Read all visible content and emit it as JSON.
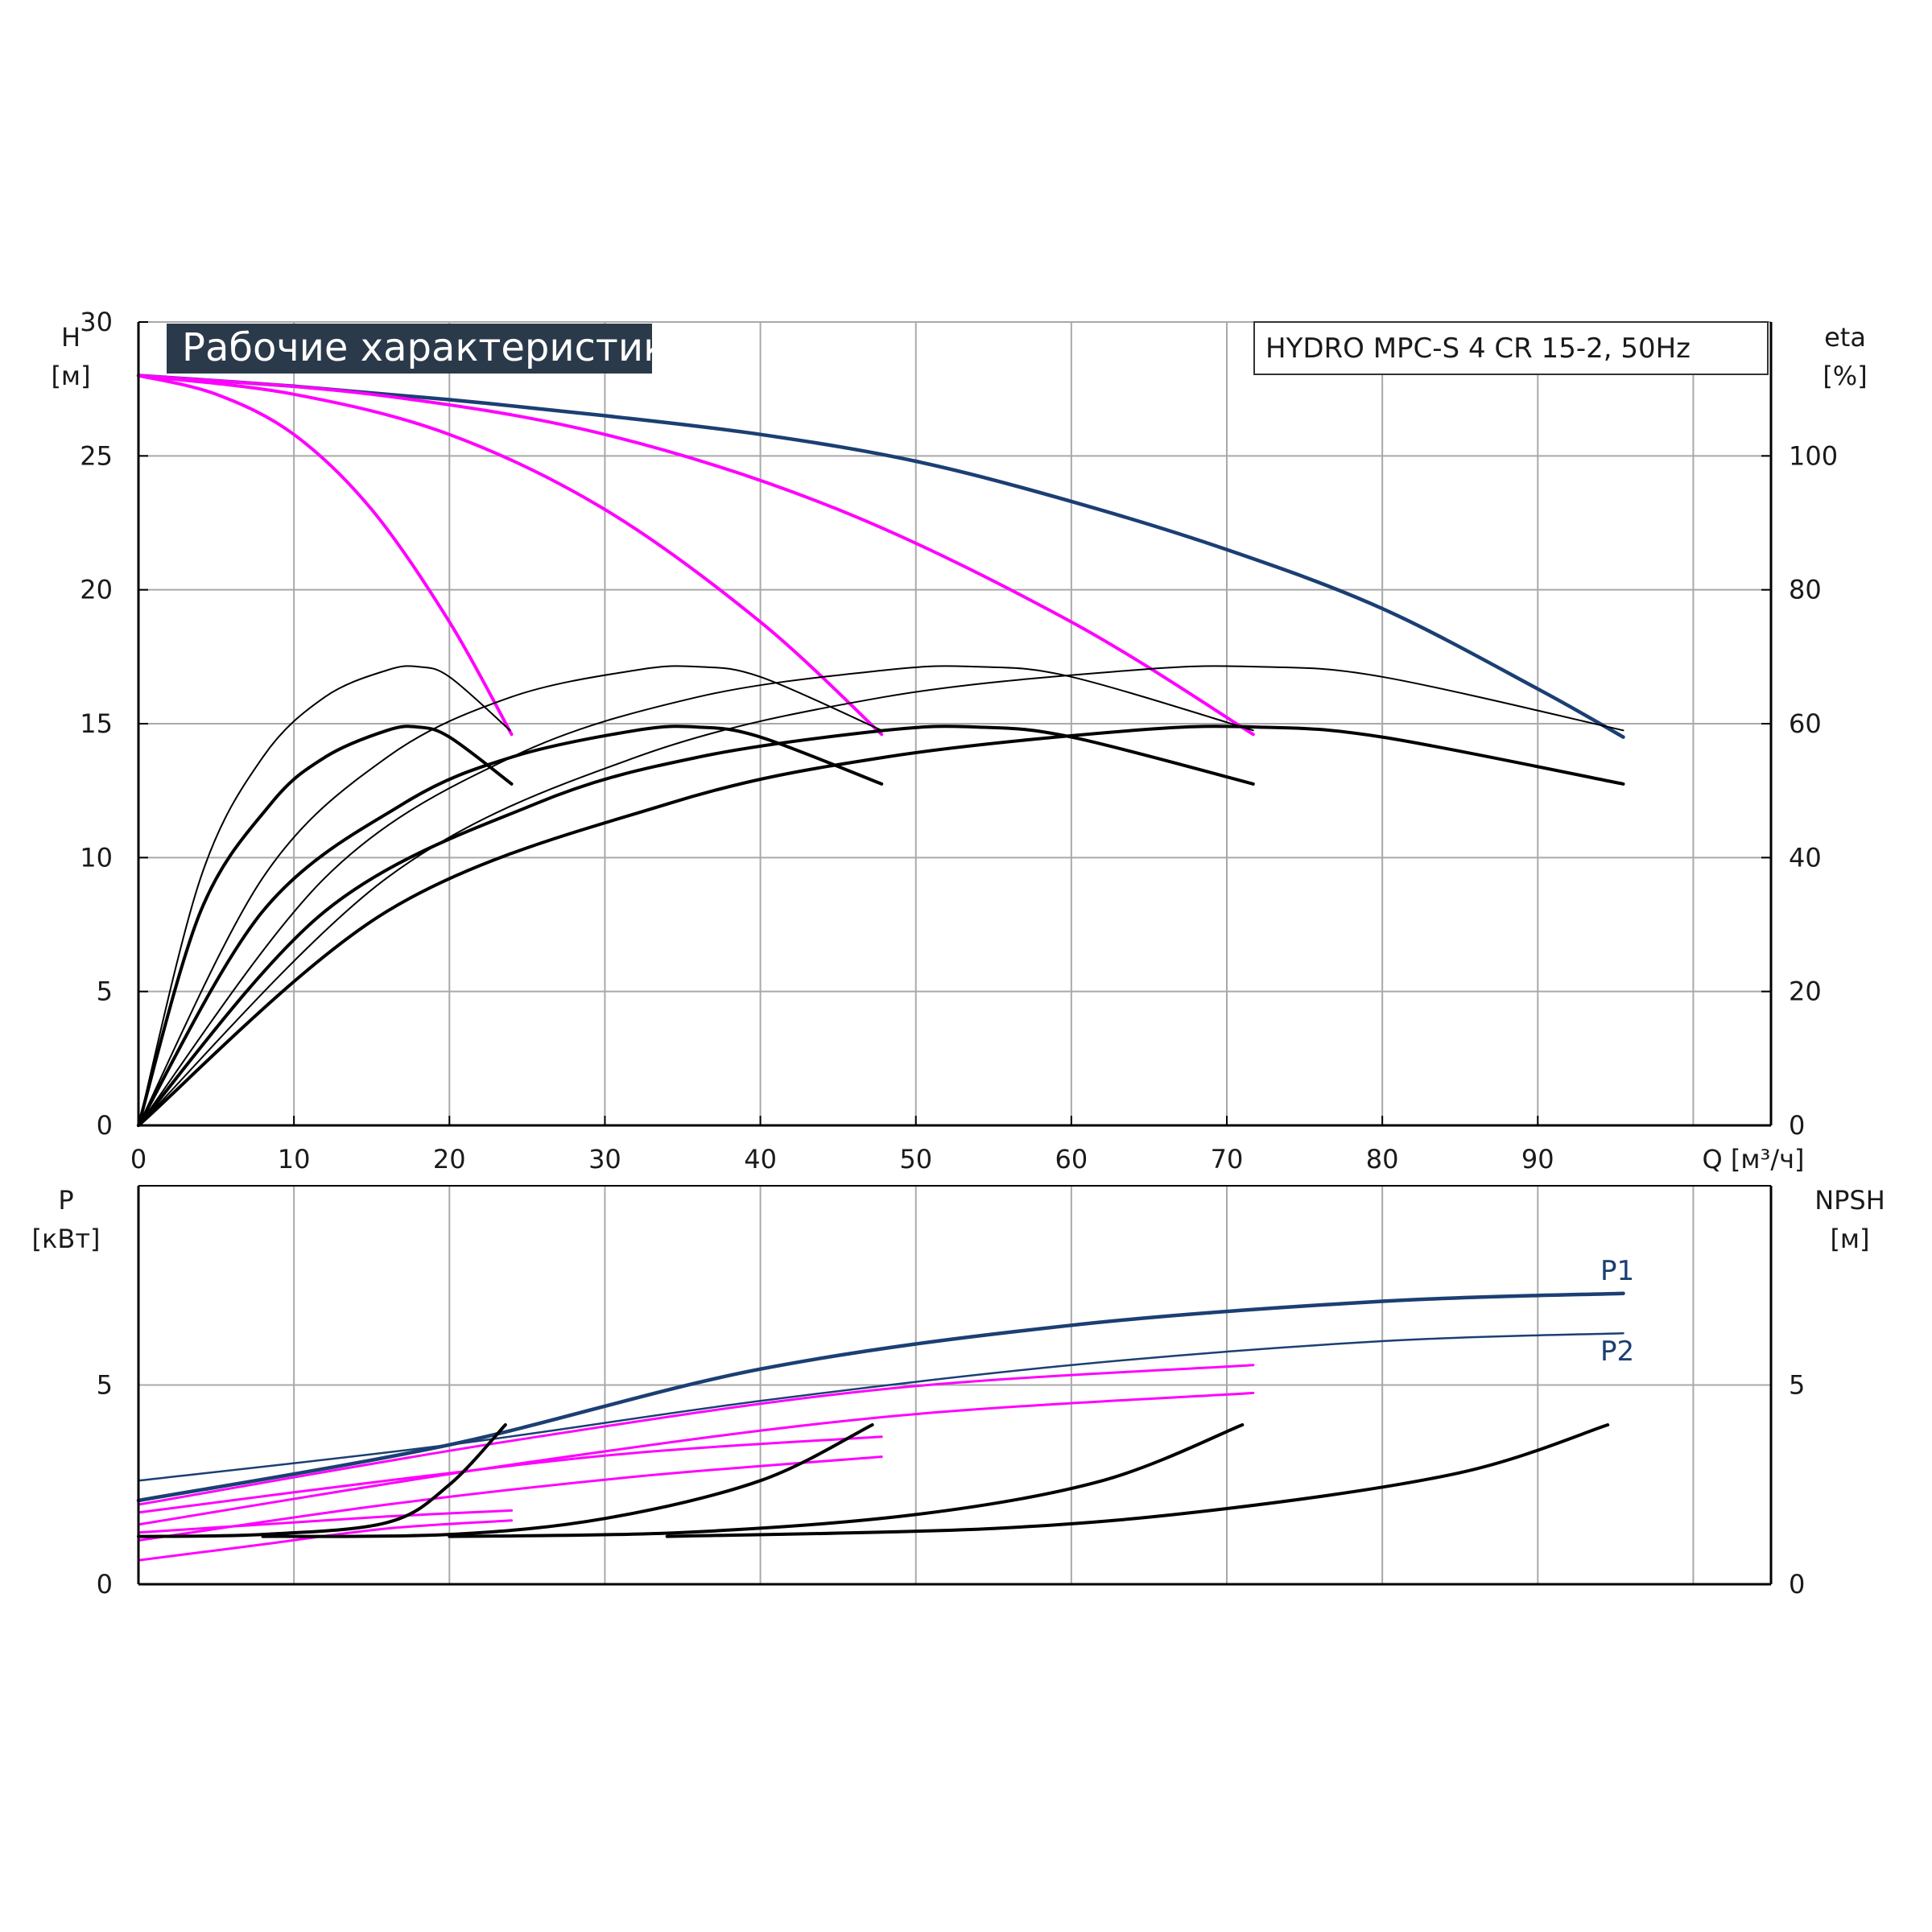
{
  "chart_data": [
    {
      "type": "line",
      "title": "Рабочие характеристики",
      "subtitle": "HYDRO MPC-S 4 CR 15-2, 50Hz",
      "xlabel": "Q [м³/ч]",
      "ylabel_name": "H",
      "ylabel_unit": "[м]",
      "y2label_name": "eta",
      "y2label_unit": "[%]",
      "xlim": [
        0,
        105
      ],
      "ylim": [
        0,
        30
      ],
      "y2lim": [
        0,
        120
      ],
      "x_ticks": [
        "0",
        "10",
        "20",
        "30",
        "40",
        "50",
        "60",
        "70",
        "80",
        "90"
      ],
      "y_ticks": [
        "0",
        "5",
        "10",
        "15",
        "20",
        "25",
        "30"
      ],
      "y2_ticks": [
        "0",
        "20",
        "40",
        "60",
        "80",
        "100"
      ],
      "grid": true,
      "colors": {
        "total": "#1b3f73",
        "pump": "#ff00ff",
        "eta": "#000000",
        "grid": "#a9a9a9"
      },
      "series": [
        {
          "kind": "H",
          "role": "total",
          "x": [
            0,
            10,
            20,
            30,
            40,
            50,
            60,
            70,
            80,
            90,
            95.5
          ],
          "y": [
            28,
            27.6,
            27.1,
            26.5,
            25.8,
            24.8,
            23.3,
            21.5,
            19.3,
            16.3,
            14.5
          ]
        },
        {
          "kind": "H",
          "role": "pump",
          "x": [
            0,
            5,
            10,
            15,
            20,
            24
          ],
          "y": [
            28,
            27.3,
            25.8,
            23.0,
            18.8,
            14.6
          ]
        },
        {
          "kind": "H",
          "role": "pump",
          "x": [
            0,
            10,
            20,
            30,
            40,
            47.8
          ],
          "y": [
            28,
            27.3,
            25.8,
            23.0,
            18.8,
            14.6
          ]
        },
        {
          "kind": "H",
          "role": "pump",
          "x": [
            0,
            15,
            30,
            45,
            60,
            71.7
          ],
          "y": [
            28,
            27.3,
            25.8,
            23.0,
            18.8,
            14.6
          ]
        },
        {
          "kind": "eta",
          "role": "upper",
          "x": [
            0,
            4,
            8,
            12,
            16,
            18,
            20,
            23.9
          ],
          "y": [
            0,
            37,
            55,
            64,
            68,
            68.5,
            67,
            59
          ]
        },
        {
          "kind": "eta",
          "role": "upper",
          "x": [
            0,
            8,
            16,
            24,
            32,
            36,
            40,
            47.8
          ],
          "y": [
            0,
            37,
            55,
            64,
            68,
            68.5,
            67,
            59
          ]
        },
        {
          "kind": "eta",
          "role": "upper",
          "x": [
            0,
            12,
            24,
            36,
            48,
            54,
            60,
            71.7
          ],
          "y": [
            0,
            37,
            55,
            64,
            68,
            68.5,
            67,
            59
          ]
        },
        {
          "kind": "eta",
          "role": "upper",
          "x": [
            0,
            16,
            32,
            48,
            64,
            72,
            80,
            95.5
          ],
          "y": [
            0,
            37,
            55,
            64,
            68,
            68.5,
            67,
            59
          ]
        },
        {
          "kind": "eta",
          "role": "lower",
          "x": [
            0,
            4,
            8.5,
            12,
            16,
            18,
            20,
            24
          ],
          "y": [
            0,
            32,
            48,
            55,
            59,
            59.5,
            58,
            51
          ]
        },
        {
          "kind": "eta",
          "role": "lower",
          "x": [
            0,
            8,
            17,
            24,
            32,
            36,
            40,
            47.8
          ],
          "y": [
            0,
            32,
            48,
            55,
            59,
            59.5,
            58,
            51
          ]
        },
        {
          "kind": "eta",
          "role": "lower",
          "x": [
            0,
            12,
            25.5,
            36,
            48,
            54,
            60,
            71.7
          ],
          "y": [
            0,
            32,
            48,
            55,
            59,
            59.5,
            58,
            51
          ]
        },
        {
          "kind": "eta",
          "role": "lower",
          "x": [
            0,
            16,
            34,
            48,
            64,
            72,
            80,
            95.5
          ],
          "y": [
            0,
            32,
            48,
            55,
            59,
            59.5,
            58,
            51
          ]
        }
      ]
    },
    {
      "type": "line",
      "xlim": [
        0,
        105
      ],
      "ylim": [
        0,
        10
      ],
      "y2lim": [
        0,
        10
      ],
      "ylabel_name": "P",
      "ylabel_unit": "[кВт]",
      "y2label_name": "NPSH",
      "y2label_unit": "[м]",
      "y_ticks": [
        "0",
        "5"
      ],
      "y2_ticks": [
        "0",
        "5"
      ],
      "grid": true,
      "series": [
        {
          "name": "P1",
          "kind": "P",
          "role": "total",
          "x": [
            0,
            20,
            40,
            60,
            80,
            95.5
          ],
          "y": [
            2.1,
            3.5,
            5.4,
            6.5,
            7.1,
            7.3
          ]
        },
        {
          "name": "P2",
          "kind": "P",
          "role": "total",
          "x": [
            0,
            20,
            40,
            60,
            80,
            95.5
          ],
          "y": [
            2.6,
            3.5,
            4.6,
            5.5,
            6.1,
            6.3
          ]
        },
        {
          "kind": "P",
          "role": "pump",
          "x": [
            0,
            8,
            16,
            24
          ],
          "y": [
            1.3,
            1.5,
            1.7,
            1.85
          ]
        },
        {
          "kind": "P",
          "role": "pump",
          "x": [
            0,
            8,
            16,
            24
          ],
          "y": [
            0.6,
            1.0,
            1.4,
            1.6
          ]
        },
        {
          "kind": "P",
          "role": "pump",
          "x": [
            0,
            16,
            32,
            47.8
          ],
          "y": [
            1.8,
            2.6,
            3.3,
            3.7
          ]
        },
        {
          "kind": "P",
          "role": "pump",
          "x": [
            0,
            16,
            32,
            47.8
          ],
          "y": [
            1.1,
            2.0,
            2.7,
            3.2
          ]
        },
        {
          "kind": "P",
          "role": "pump",
          "x": [
            0,
            24,
            48,
            71.7
          ],
          "y": [
            2.0,
            3.6,
            4.9,
            5.5
          ]
        },
        {
          "kind": "P",
          "role": "pump",
          "x": [
            0,
            24,
            48,
            71.7
          ],
          "y": [
            1.5,
            3.0,
            4.2,
            4.8
          ]
        },
        {
          "kind": "NPSH",
          "x": [
            0,
            8,
            16,
            20,
            23.6
          ],
          "y": [
            1.2,
            1.25,
            1.55,
            2.5,
            4.0
          ]
        },
        {
          "kind": "NPSH",
          "x": [
            8,
            20,
            30,
            40,
            47.2
          ],
          "y": [
            1.2,
            1.25,
            1.65,
            2.6,
            4.0
          ]
        },
        {
          "kind": "NPSH",
          "x": [
            20,
            35,
            50,
            62,
            71
          ],
          "y": [
            1.2,
            1.3,
            1.75,
            2.6,
            4.0
          ]
        },
        {
          "kind": "NPSH",
          "x": [
            34,
            55,
            70,
            85,
            94.5
          ],
          "y": [
            1.2,
            1.4,
            1.9,
            2.8,
            4.0
          ]
        }
      ]
    }
  ]
}
